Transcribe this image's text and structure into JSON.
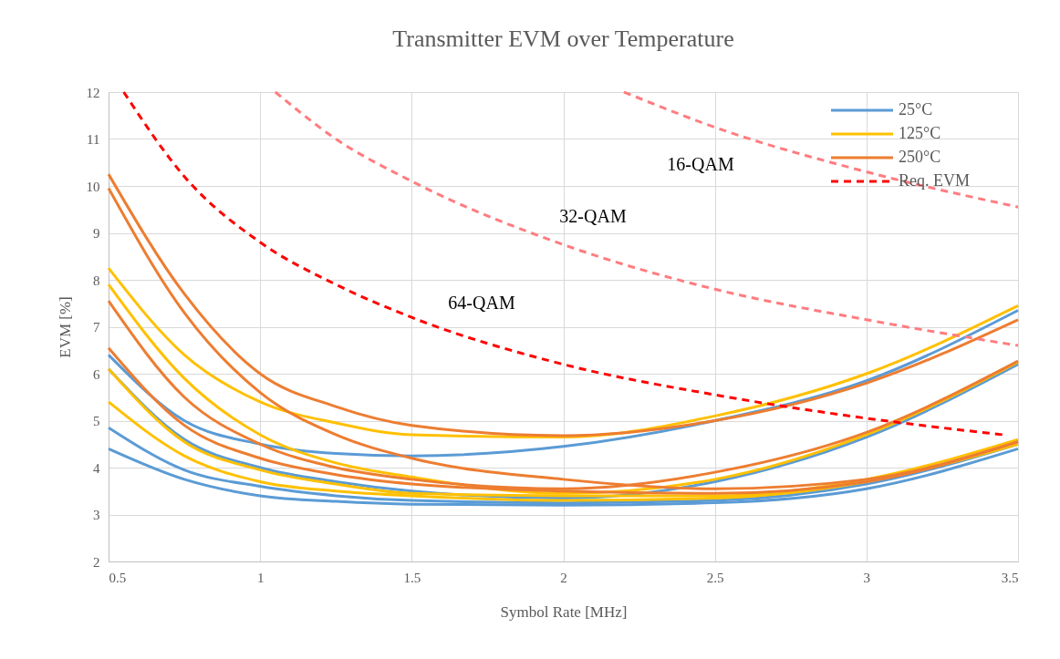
{
  "chart_data": {
    "type": "line",
    "title": "Transmitter EVM over Temperature",
    "xlabel": "Symbol Rate [MHz]",
    "ylabel": "EVM [%]",
    "xlim": [
      0.5,
      3.5
    ],
    "xticks": [
      0.5,
      1,
      1.5,
      2,
      2.5,
      3,
      3.5
    ],
    "ylim": [
      2,
      12
    ],
    "yticks": [
      2,
      3,
      4,
      5,
      6,
      7,
      8,
      9,
      10,
      11,
      12
    ],
    "grid": true,
    "legend": "top right",
    "marker": "none",
    "x": [
      0.5,
      0.75,
      1,
      1.25,
      1.5,
      2,
      2.5,
      3,
      3.5
    ],
    "series": [
      {
        "name": "25°C",
        "color": "#5b9bd5",
        "values": [
          6.4,
          5.0,
          4.5,
          4.3,
          4.25,
          4.45,
          5.0,
          5.85,
          7.35
        ]
      },
      {
        "color": "#5b9bd5",
        "values": [
          6.1,
          4.6,
          4.0,
          3.7,
          3.5,
          3.35,
          3.7,
          4.65,
          6.2
        ]
      },
      {
        "color": "#5b9bd5",
        "values": [
          4.85,
          3.95,
          3.6,
          3.4,
          3.3,
          3.25,
          3.3,
          3.65,
          4.5
        ]
      },
      {
        "color": "#5b9bd5",
        "values": [
          4.4,
          3.75,
          3.4,
          3.28,
          3.22,
          3.2,
          3.25,
          3.55,
          4.4
        ]
      },
      {
        "name": "125°C",
        "color": "#ffc000",
        "values": [
          8.25,
          6.4,
          5.4,
          4.95,
          4.7,
          4.65,
          5.1,
          6.0,
          7.45
        ]
      },
      {
        "color": "#ffc000",
        "values": [
          7.9,
          5.9,
          4.7,
          4.1,
          3.8,
          3.45,
          3.75,
          4.7,
          6.25
        ]
      },
      {
        "color": "#ffc000",
        "values": [
          6.1,
          4.55,
          3.95,
          3.65,
          3.45,
          3.4,
          3.4,
          3.75,
          4.6
        ]
      },
      {
        "color": "#ffc000",
        "values": [
          5.4,
          4.25,
          3.7,
          3.5,
          3.4,
          3.3,
          3.35,
          3.7,
          4.5
        ]
      },
      {
        "name": "250°C",
        "color": "#ed7d31",
        "values": [
          10.25,
          7.7,
          6.0,
          5.3,
          4.9,
          4.68,
          5.0,
          5.8,
          7.15
        ]
      },
      {
        "color": "#ed7d31",
        "values": [
          9.95,
          7.3,
          5.6,
          4.7,
          4.2,
          3.75,
          3.55,
          3.75,
          4.55
        ]
      },
      {
        "color": "#ed7d31",
        "values": [
          7.55,
          5.5,
          4.5,
          4.0,
          3.75,
          3.55,
          3.9,
          4.75,
          6.27
        ]
      },
      {
        "color": "#ed7d31",
        "values": [
          6.55,
          4.9,
          4.2,
          3.85,
          3.65,
          3.5,
          3.45,
          3.7,
          4.55
        ]
      },
      {
        "name": "Req. EVM",
        "color": "#ff0000",
        "line_style": "dashed",
        "x": [
          0.55,
          0.75,
          1,
          1.25,
          1.5,
          2,
          2.5,
          3,
          3.45
        ],
        "values": [
          12,
          10.2,
          8.8,
          7.9,
          7.2,
          6.2,
          5.55,
          5.05,
          4.7
        ]
      },
      {
        "color": "#ff7c80",
        "line_style": "dashed",
        "x": [
          1.05,
          1.25,
          1.5,
          2,
          2.5,
          3,
          3.5
        ],
        "values": [
          12,
          11,
          10.1,
          8.75,
          7.8,
          7.15,
          6.6
        ]
      },
      {
        "color": "#ff7c80",
        "line_style": "dashed",
        "x": [
          2.2,
          2.5,
          3,
          3.5
        ],
        "values": [
          12,
          11.25,
          10.3,
          9.55
        ]
      }
    ],
    "annotations": [
      "64-QAM",
      "32-QAM",
      "16-QAM"
    ]
  }
}
